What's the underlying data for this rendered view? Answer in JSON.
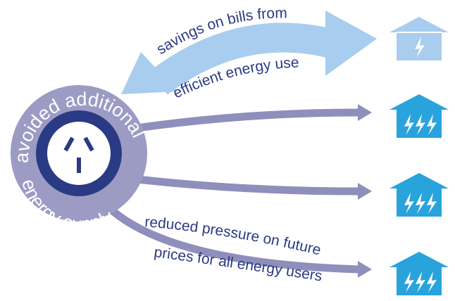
{
  "circle": {
    "top_label": "avoided additional",
    "bottom_label": "energy supply"
  },
  "arrows": {
    "savings": [
      "savings on bills from",
      "efficient energy use"
    ],
    "pressure": [
      "reduced pressure on future",
      "prices for all energy users"
    ]
  }
}
